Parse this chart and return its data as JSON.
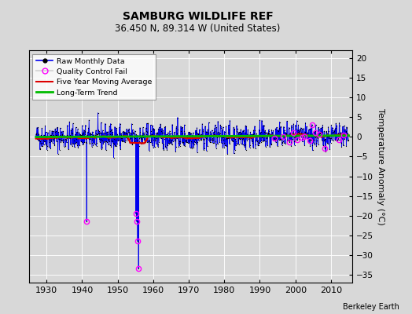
{
  "title": "SAMBURG WILDLIFE REF",
  "subtitle": "36.450 N, 89.314 W (United States)",
  "ylabel": "Temperature Anomaly (°C)",
  "credit": "Berkeley Earth",
  "ylim": [
    -37,
    22
  ],
  "yticks": [
    -35,
    -30,
    -25,
    -20,
    -15,
    -10,
    -5,
    0,
    5,
    10,
    15,
    20
  ],
  "xlim": [
    1925,
    2016
  ],
  "xticks": [
    1930,
    1940,
    1950,
    1960,
    1970,
    1980,
    1990,
    2000,
    2010
  ],
  "start_year": 1927,
  "end_year": 2015,
  "background_color": "#d8d8d8",
  "plot_bg_color": "#d8d8d8",
  "raw_color": "#0000ee",
  "qc_color": "#ff00ff",
  "moving_avg_color": "#dd0000",
  "trend_color": "#00bb00",
  "seed": 42
}
